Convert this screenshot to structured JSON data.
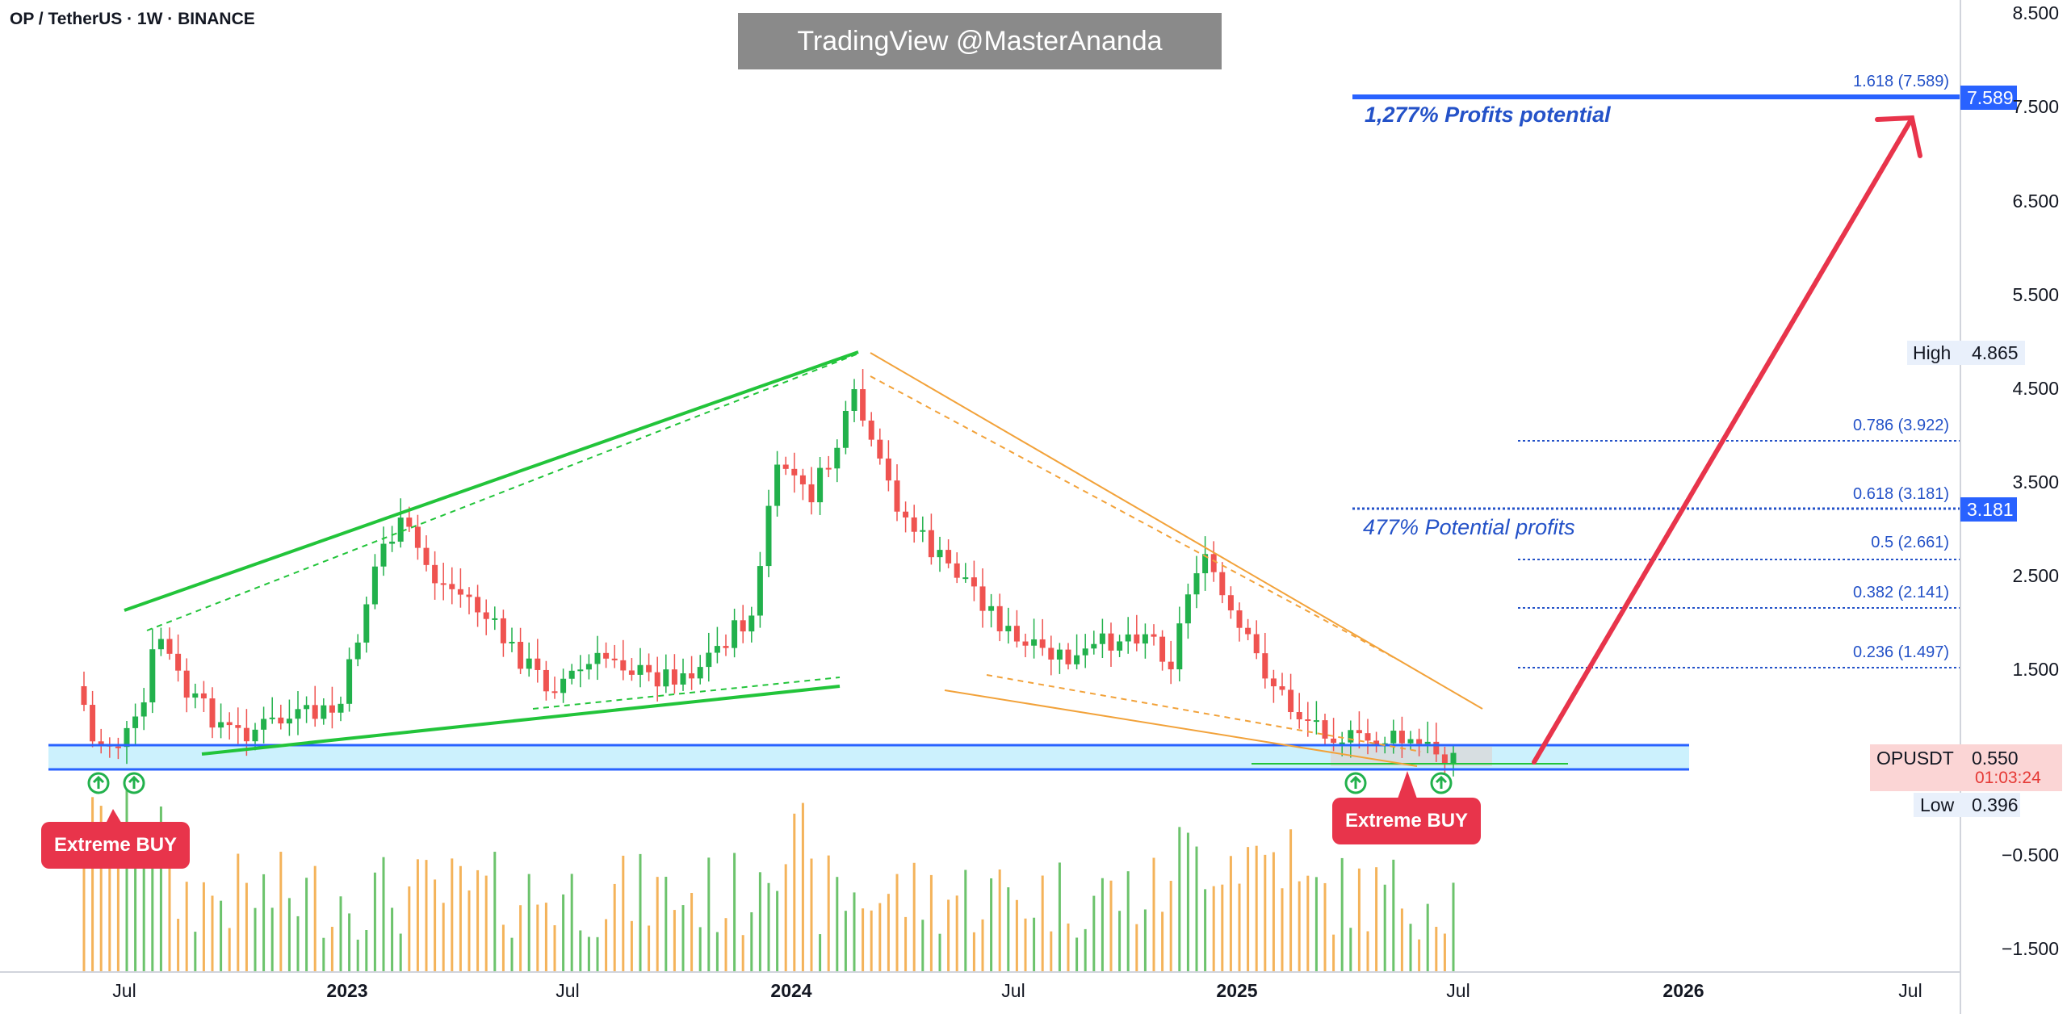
{
  "header": {
    "symbol": "OP / TetherUS · 1W · BINANCE",
    "watermark": "TradingView @MasterAnanda"
  },
  "chart_data": {
    "type": "candlestick",
    "symbol": "OPUSDT",
    "interval": "1W",
    "exchange": "BINANCE",
    "y_axis": {
      "ticks": [
        "8.500",
        "7.500",
        "6.500",
        "5.500",
        "4.500",
        "3.500",
        "2.500",
        "1.500",
        "0.550",
        "−0.500",
        "−1.500"
      ],
      "grid": false
    },
    "x_axis": {
      "ticks": [
        {
          "label": "Jul",
          "year": false
        },
        {
          "label": "2023",
          "year": true
        },
        {
          "label": "Jul",
          "year": false
        },
        {
          "label": "2024",
          "year": true
        },
        {
          "label": "Jul",
          "year": false
        },
        {
          "label": "2025",
          "year": true
        },
        {
          "label": "Jul",
          "year": false
        },
        {
          "label": "2026",
          "year": true
        },
        {
          "label": "Jul",
          "year": false
        }
      ]
    },
    "fib_levels": [
      {
        "label": "1.618 (7.589)",
        "value": 7.589
      },
      {
        "label": "0.786 (3.922)",
        "value": 3.922
      },
      {
        "label": "0.618 (3.181)",
        "value": 3.181
      },
      {
        "label": "0.5 (2.661)",
        "value": 2.661
      },
      {
        "label": "0.382 (2.141)",
        "value": 2.141
      },
      {
        "label": "0.236 (1.497)",
        "value": 1.497
      }
    ],
    "annotations": {
      "target_profit": "1,277% Profits potential",
      "mid_profit": "477% Potential profits",
      "buy_left": "Extreme BUY",
      "buy_right": "Extreme BUY"
    },
    "price_labels": {
      "target": "7.589",
      "mid": "3.181",
      "high_label": "High",
      "high_value": "4.865",
      "current_symbol": "OPUSDT",
      "current_value": "0.550",
      "countdown": "01:03:24",
      "low_label": "Low",
      "low_value": "0.396"
    },
    "support_zone": {
      "low": 0.39,
      "high": 0.72
    },
    "colors": {
      "up": "#22b14c",
      "down": "#ef5350",
      "support": "#2962ff",
      "zone": "#bfeefc",
      "wedge_up": "#22c43a",
      "wedge_down": "#f2a23a",
      "arrow": "#e8344b",
      "fib": "#2452c8",
      "vol_up": "#6cc36c",
      "vol_down": "#f4b35a"
    }
  }
}
